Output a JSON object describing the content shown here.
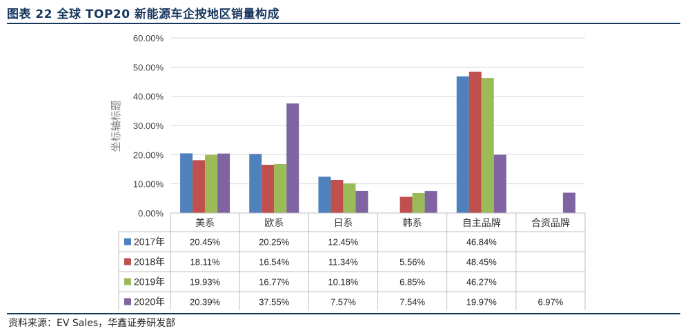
{
  "header": {
    "title": "图表 22 全球 TOP20 新能源车企按地区销量构成"
  },
  "footer": {
    "source": "资料来源：EV Sales，华鑫证券研发部"
  },
  "chart_data": {
    "type": "bar",
    "ylabel": "坐标轴标题",
    "xlabel": "",
    "ylim": [
      0,
      60
    ],
    "yticks": [
      "0.00%",
      "10.00%",
      "20.00%",
      "30.00%",
      "40.00%",
      "50.00%",
      "60.00%"
    ],
    "grid": true,
    "legend_position": "table-left",
    "categories": [
      "美系",
      "欧系",
      "日系",
      "韩系",
      "自主品牌",
      "合资品牌"
    ],
    "series": [
      {
        "name": "2017年",
        "color": "#4f81bd",
        "values": [
          20.45,
          20.25,
          12.45,
          null,
          46.84,
          null
        ],
        "labels": [
          "20.45%",
          "20.25%",
          "12.45%",
          "",
          "46.84%",
          ""
        ]
      },
      {
        "name": "2018年",
        "color": "#c0504d",
        "values": [
          18.11,
          16.54,
          11.34,
          5.56,
          48.45,
          null
        ],
        "labels": [
          "18.11%",
          "16.54%",
          "11.34%",
          "5.56%",
          "48.45%",
          ""
        ]
      },
      {
        "name": "2019年",
        "color": "#9bbb59",
        "values": [
          19.93,
          16.77,
          10.18,
          6.85,
          46.27,
          null
        ],
        "labels": [
          "19.93%",
          "16.77%",
          "10.18%",
          "6.85%",
          "46.27%",
          ""
        ]
      },
      {
        "name": "2020年",
        "color": "#8064a2",
        "values": [
          20.39,
          37.55,
          7.57,
          7.54,
          19.97,
          6.97
        ],
        "labels": [
          "20.39%",
          "37.55%",
          "7.57%",
          "7.54%",
          "19.97%",
          "6.97%"
        ]
      }
    ]
  }
}
